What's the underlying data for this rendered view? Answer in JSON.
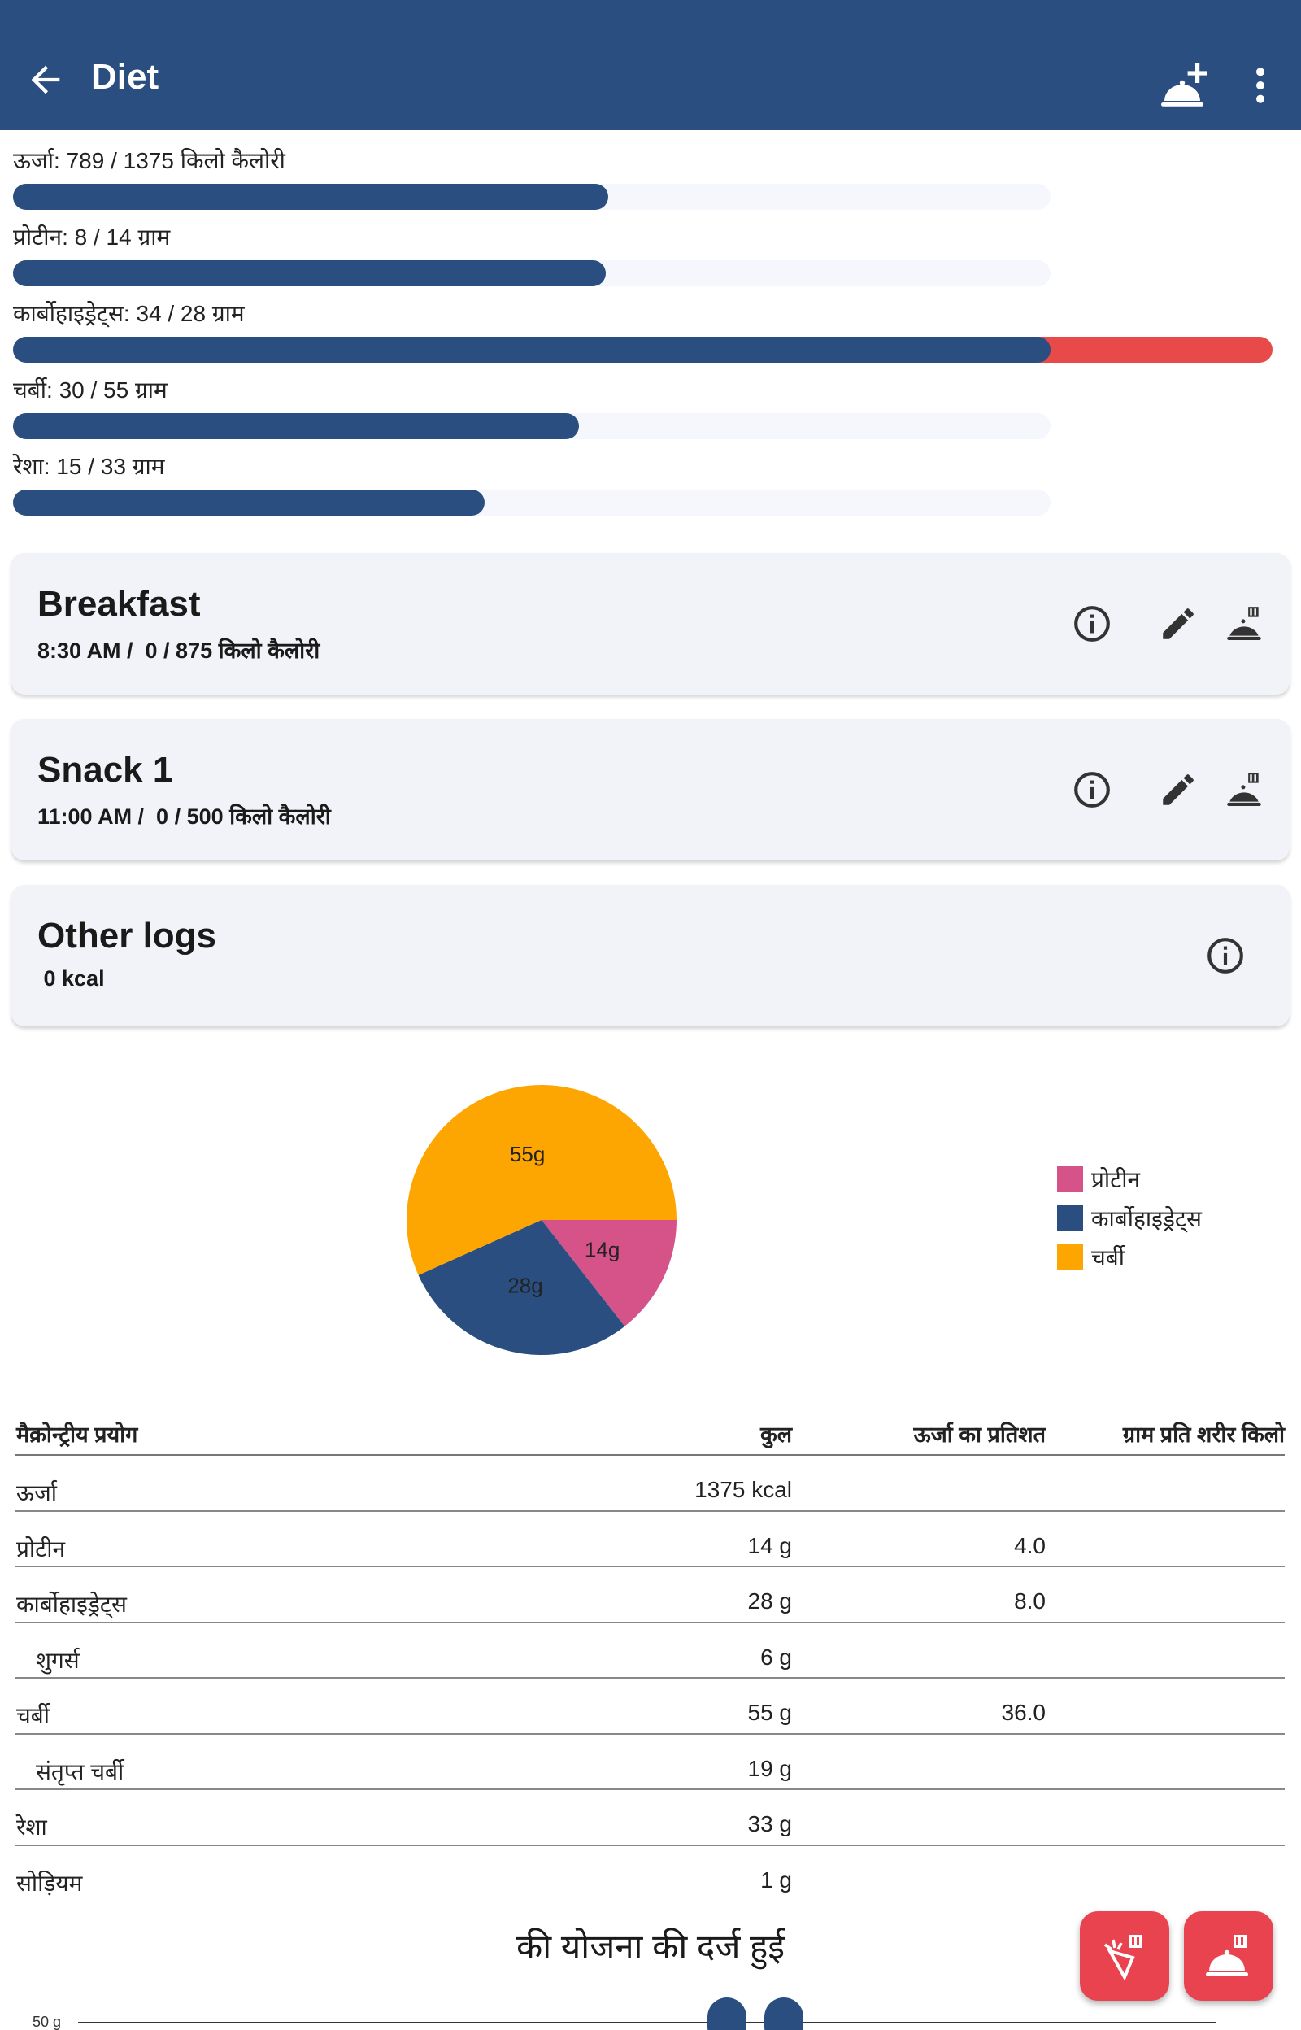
{
  "appbar": {
    "title": "Diet",
    "back_icon": "arrow-left-icon",
    "add_icon": "add-meal-icon",
    "menu_icon": "more-vert-icon",
    "color": "#2a4e7f"
  },
  "progress": [
    {
      "label": "ऊर्जा: 789 / 1375 किलो कैलोरी",
      "value": 789,
      "goal": 1375
    },
    {
      "label": "प्रोटीन: 8 / 14 ग्राम",
      "value": 8,
      "goal": 14
    },
    {
      "label": "कार्बोहाइड्रेट्स: 34 / 28 ग्राम",
      "value": 34,
      "goal": 28
    },
    {
      "label": "चर्बी: 30 / 55 ग्राम",
      "value": 30,
      "goal": 55
    },
    {
      "label": "रेशा: 15 / 33 ग्राम",
      "value": 15,
      "goal": 33
    }
  ],
  "meals": [
    {
      "name": "Breakfast",
      "meta": "8:30 AM /  0 / 875 किलो कैलोरी"
    },
    {
      "name": "Snack 1",
      "meta": "11:00 AM /  0 / 500 किलो कैलोरी"
    },
    {
      "name": "Other logs",
      "meta": " 0 kcal"
    }
  ],
  "chart_data": {
    "type": "pie",
    "series": [
      {
        "name": "प्रोटीन",
        "value": 14,
        "label": "14g",
        "color": "#d6538a"
      },
      {
        "name": "कार्बोहाइड्रेट्स",
        "value": 28,
        "label": "28g",
        "color": "#2a4e7f"
      },
      {
        "name": "चर्बी",
        "value": 55,
        "label": "55g",
        "color": "#fda500"
      }
    ],
    "legend_position": "right"
  },
  "table": {
    "headers": [
      "मैक्रोन्ट्रीय प्रयोग",
      "कुल",
      "ऊर्जा का प्रतिशत",
      "ग्राम प्रति शरीर किलो"
    ],
    "rows": [
      {
        "name": "ऊर्जा",
        "total": "1375 kcal",
        "pct": "",
        "indent": false
      },
      {
        "name": "प्रोटीन",
        "total": "14 g",
        "pct": "4.0",
        "indent": false
      },
      {
        "name": "कार्बोहाइड्रेट्स",
        "total": "28 g",
        "pct": "8.0",
        "indent": false
      },
      {
        "name": "शुगर्स",
        "total": "6 g",
        "pct": "",
        "indent": true
      },
      {
        "name": "चर्बी",
        "total": "55 g",
        "pct": "36.0",
        "indent": false
      },
      {
        "name": "संतृप्त चर्बी",
        "total": "19 g",
        "pct": "",
        "indent": true
      },
      {
        "name": "रेशा",
        "total": "33 g",
        "pct": "",
        "indent": false
      },
      {
        "name": "सोड़ियम",
        "total": "1 g",
        "pct": "",
        "indent": false
      }
    ]
  },
  "plan": {
    "title": "की योजना की दर्ज हुई",
    "axis_label": "50 g"
  },
  "fabs": {
    "food_icon": "log-food-icon",
    "meal_icon": "log-meal-icon",
    "color": "#e8434f"
  }
}
